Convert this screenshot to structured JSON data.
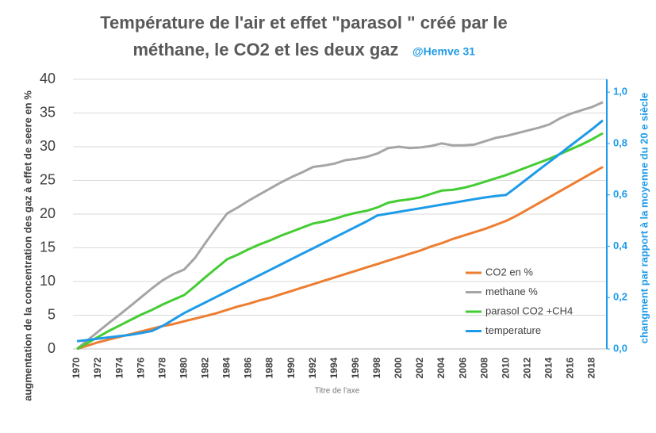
{
  "chart_data": {
    "type": "line",
    "title": "Température de l'air et effet \"parasol \" créé par le",
    "subtitle": "méthane, le CO2 et les deux gaz",
    "annotation": "@Hemve 31",
    "x_label": "Titre de l'axe",
    "y_label": "augmentation de la concentration des gaz à effet de seere en %",
    "y2_label": "changment par rapport à la moyenne du 20 e siècle",
    "categories": [
      "1970",
      null,
      "1972",
      null,
      "1974",
      null,
      "1976",
      null,
      "1978",
      null,
      "1980",
      null,
      "1982",
      null,
      "1984",
      null,
      "1986",
      null,
      "1988",
      null,
      "1990",
      null,
      "1992",
      null,
      "1994",
      null,
      "1996",
      null,
      "1998",
      null,
      "2000",
      null,
      "2002",
      null,
      "2004",
      null,
      "2006",
      null,
      "2008",
      null,
      "2010",
      null,
      "2012",
      null,
      "2014",
      null,
      "2016",
      null,
      "2018",
      null
    ],
    "ylim": [
      0,
      40
    ],
    "yticks": [
      0,
      5,
      10,
      15,
      20,
      25,
      30,
      35,
      40
    ],
    "y2lim": [
      0,
      1.05
    ],
    "y2ticks": [
      {
        "value": 0,
        "label": "0,0"
      },
      {
        "value": 0.2,
        "label": "0,2"
      },
      {
        "value": 0.4,
        "label": "0,4"
      },
      {
        "value": 0.6,
        "label": "0,6"
      },
      {
        "value": 0.8,
        "label": "0,8"
      },
      {
        "value": 1,
        "label": "1,0"
      }
    ],
    "grid": true,
    "legend": "right",
    "series": [
      {
        "name": "CO2 en %",
        "color": "#ed7d31",
        "values": [
          0,
          0.5,
          1.0,
          1.4,
          1.8,
          2.2,
          2.6,
          3.0,
          3.4,
          3.7,
          4.1,
          4.5,
          4.9,
          5.3,
          5.8,
          6.3,
          6.7,
          7.2,
          7.6,
          8.1,
          8.6,
          9.1,
          9.6,
          10.1,
          10.6,
          11.1,
          11.6,
          12.1,
          12.6,
          13.1,
          13.6,
          14.1,
          14.6,
          15.2,
          15.7,
          16.3,
          16.8,
          17.3,
          17.8,
          18.4,
          19.0,
          19.8,
          20.7,
          21.6,
          22.5,
          23.4,
          24.3,
          25.2,
          26.1,
          27.0
        ]
      },
      {
        "name": "methane %",
        "color": "#a5a5a5",
        "values": [
          0,
          1.3,
          2.6,
          3.9,
          5.1,
          6.4,
          7.7,
          9.0,
          10.2,
          11.1,
          11.8,
          13.5,
          15.8,
          18.0,
          20.1,
          21.0,
          22.0,
          22.9,
          23.8,
          24.7,
          25.5,
          26.2,
          27.0,
          27.2,
          27.5,
          28.0,
          28.2,
          28.5,
          29.0,
          29.8,
          30.0,
          29.8,
          29.9,
          30.1,
          30.5,
          30.2,
          30.2,
          30.3,
          30.8,
          31.3,
          31.6,
          32.0,
          32.4,
          32.8,
          33.3,
          34.2,
          34.9,
          35.4,
          35.9,
          36.6
        ]
      },
      {
        "name": "parasol CO2 +CH4",
        "color": "#44cc33",
        "values": [
          0,
          0.9,
          1.8,
          2.7,
          3.5,
          4.3,
          5.1,
          5.8,
          6.6,
          7.3,
          8.0,
          9.3,
          10.7,
          12.0,
          13.3,
          14.0,
          14.8,
          15.5,
          16.1,
          16.8,
          17.4,
          18.0,
          18.6,
          18.9,
          19.3,
          19.8,
          20.2,
          20.5,
          21.0,
          21.7,
          22.0,
          22.2,
          22.5,
          23.0,
          23.5,
          23.6,
          23.9,
          24.3,
          24.8,
          25.3,
          25.8,
          26.4,
          27.0,
          27.6,
          28.2,
          28.9,
          29.6,
          30.3,
          31.1,
          32.0
        ]
      },
      {
        "name": "temperature",
        "color": "#1e9be8",
        "axis": "y2",
        "values": [
          0.03,
          0.035,
          0.04,
          0.045,
          0.05,
          0.055,
          0.062,
          0.07,
          0.09,
          0.115,
          0.14,
          0.161,
          0.182,
          0.203,
          0.224,
          0.245,
          0.266,
          0.287,
          0.308,
          0.329,
          0.35,
          0.371,
          0.392,
          0.413,
          0.434,
          0.455,
          0.476,
          0.497,
          0.52,
          0.527,
          0.534,
          0.541,
          0.548,
          0.555,
          0.562,
          0.569,
          0.576,
          0.583,
          0.59,
          0.595,
          0.6,
          0.632,
          0.664,
          0.696,
          0.728,
          0.76,
          0.792,
          0.824,
          0.856,
          0.89
        ]
      }
    ]
  }
}
